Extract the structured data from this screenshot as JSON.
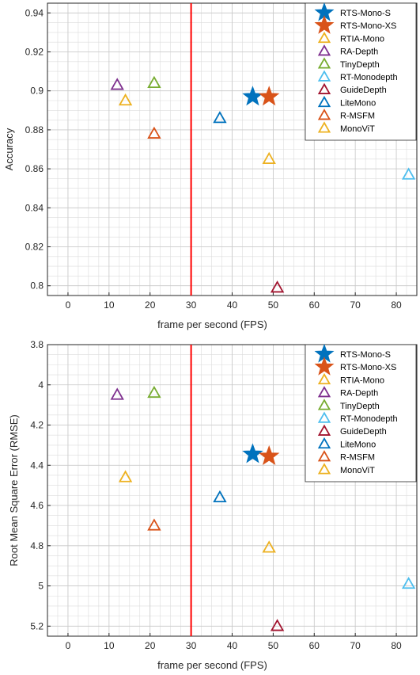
{
  "colors": {
    "blue": "#0072BD",
    "orange": "#D95319",
    "yellow": "#EDB120",
    "purple": "#7E2F8E",
    "green": "#77AC30",
    "cyan": "#4DBEEE",
    "darkred": "#A2142F",
    "refline": "#FF0000",
    "grid": "#c8c8c8",
    "axis": "#262626"
  },
  "chart_data": [
    {
      "type": "scatter",
      "xlabel": "frame per second (FPS)",
      "ylabel": "Accuracy",
      "xlim": [
        -5,
        85
      ],
      "ylim": [
        0.795,
        0.945
      ],
      "xticks": [
        0,
        10,
        20,
        30,
        40,
        50,
        60,
        70,
        80
      ],
      "yticks": [
        0.8,
        0.82,
        0.84,
        0.86,
        0.88,
        0.9,
        0.92,
        0.94
      ],
      "ytick_labels": [
        "0.8",
        "0.82",
        "0.84",
        "0.86",
        "0.88",
        "0.9",
        "0.92",
        "0.94"
      ],
      "grid": "major and minor",
      "reference_line_x": 30,
      "legend_position": "top-right",
      "series": [
        {
          "name": "RTS-Mono-S",
          "marker": "star",
          "color": "#0072BD",
          "x": 45,
          "y": 0.897
        },
        {
          "name": "RTS-Mono-XS",
          "marker": "star",
          "color": "#D95319",
          "x": 49,
          "y": 0.897
        },
        {
          "name": "RTIA-Mono",
          "marker": "triangle",
          "color": "#EDB120",
          "x": 49,
          "y": 0.865
        },
        {
          "name": "RA-Depth",
          "marker": "triangle",
          "color": "#7E2F8E",
          "x": 12,
          "y": 0.903
        },
        {
          "name": "TinyDepth",
          "marker": "triangle",
          "color": "#77AC30",
          "x": 21,
          "y": 0.904
        },
        {
          "name": "RT-Monodepth",
          "marker": "triangle",
          "color": "#4DBEEE",
          "x": 83,
          "y": 0.857
        },
        {
          "name": "GuideDepth",
          "marker": "triangle",
          "color": "#A2142F",
          "x": 51,
          "y": 0.799
        },
        {
          "name": "LiteMono",
          "marker": "triangle",
          "color": "#0072BD",
          "x": 37,
          "y": 0.886
        },
        {
          "name": "R-MSFM",
          "marker": "triangle",
          "color": "#D95319",
          "x": 21,
          "y": 0.878
        },
        {
          "name": "MonoViT",
          "marker": "triangle",
          "color": "#EDB120",
          "x": 14,
          "y": 0.895
        }
      ]
    },
    {
      "type": "scatter",
      "xlabel": "frame per second (FPS)",
      "ylabel": "Root Mean Square Error (RMSE)",
      "xlim": [
        -5,
        85
      ],
      "ylim": [
        3.8,
        5.25
      ],
      "y_reversed": true,
      "xticks": [
        0,
        10,
        20,
        30,
        40,
        50,
        60,
        70,
        80
      ],
      "yticks": [
        3.8,
        4.0,
        4.2,
        4.4,
        4.6,
        4.8,
        5.0,
        5.2
      ],
      "ytick_labels": [
        "3.8",
        "4",
        "4.2",
        "4.4",
        "4.6",
        "4.8",
        "5",
        "5.2"
      ],
      "grid": "major and minor",
      "reference_line_x": 30,
      "legend_position": "top-right",
      "series": [
        {
          "name": "RTS-Mono-S",
          "marker": "star",
          "color": "#0072BD",
          "x": 45,
          "y": 4.345
        },
        {
          "name": "RTS-Mono-XS",
          "marker": "star",
          "color": "#D95319",
          "x": 49,
          "y": 4.355
        },
        {
          "name": "RTIA-Mono",
          "marker": "triangle",
          "color": "#EDB120",
          "x": 49,
          "y": 4.81
        },
        {
          "name": "RA-Depth",
          "marker": "triangle",
          "color": "#7E2F8E",
          "x": 12,
          "y": 4.05
        },
        {
          "name": "TinyDepth",
          "marker": "triangle",
          "color": "#77AC30",
          "x": 21,
          "y": 4.04
        },
        {
          "name": "RT-Monodepth",
          "marker": "triangle",
          "color": "#4DBEEE",
          "x": 83,
          "y": 4.99
        },
        {
          "name": "GuideDepth",
          "marker": "triangle",
          "color": "#A2142F",
          "x": 51,
          "y": 5.2
        },
        {
          "name": "LiteMono",
          "marker": "triangle",
          "color": "#0072BD",
          "x": 37,
          "y": 4.56
        },
        {
          "name": "R-MSFM",
          "marker": "triangle",
          "color": "#D95319",
          "x": 21,
          "y": 4.7
        },
        {
          "name": "MonoViT",
          "marker": "triangle",
          "color": "#EDB120",
          "x": 14,
          "y": 4.46
        }
      ]
    }
  ]
}
